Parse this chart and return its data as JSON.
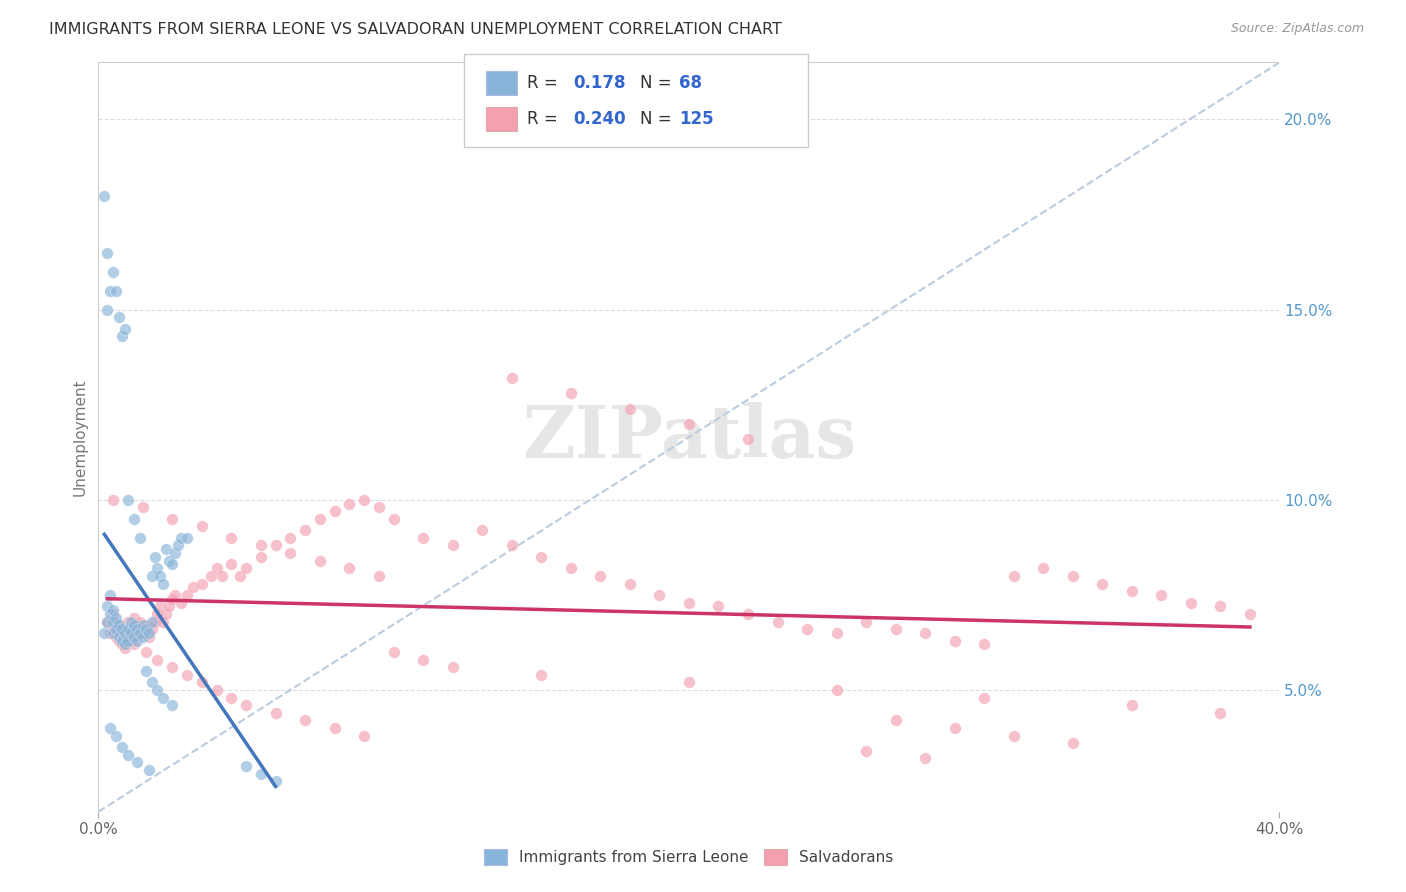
{
  "title": "IMMIGRANTS FROM SIERRA LEONE VS SALVADORAN UNEMPLOYMENT CORRELATION CHART",
  "source": "Source: ZipAtlas.com",
  "ylabel": "Unemployment",
  "ytick_vals": [
    0.05,
    0.1,
    0.15,
    0.2
  ],
  "ytick_labels": [
    "5.0%",
    "10.0%",
    "15.0%",
    "20.0%"
  ],
  "xmin": 0.0,
  "xmax": 0.4,
  "ymin": 0.018,
  "ymax": 0.215,
  "color_blue": "#89B4D9",
  "color_pink": "#F4A0B0",
  "trendline_blue": "#4477BB",
  "trendline_pink": "#CC3366",
  "trendline_dashed": "#BBCCDD",
  "bg_color": "#FFFFFF",
  "scatter_alpha": 0.65,
  "marker_size": 70,
  "blue_x": [
    0.002,
    0.003,
    0.003,
    0.004,
    0.004,
    0.005,
    0.005,
    0.005,
    0.006,
    0.006,
    0.007,
    0.007,
    0.008,
    0.008,
    0.009,
    0.009,
    0.01,
    0.01,
    0.011,
    0.011,
    0.012,
    0.012,
    0.013,
    0.013,
    0.014,
    0.015,
    0.015,
    0.016,
    0.017,
    0.018,
    0.018,
    0.019,
    0.02,
    0.021,
    0.022,
    0.023,
    0.024,
    0.025,
    0.026,
    0.027,
    0.028,
    0.03,
    0.003,
    0.004,
    0.005,
    0.006,
    0.007,
    0.008,
    0.009,
    0.01,
    0.012,
    0.014,
    0.016,
    0.018,
    0.02,
    0.022,
    0.025,
    0.05,
    0.055,
    0.06,
    0.002,
    0.003,
    0.004,
    0.006,
    0.008,
    0.01,
    0.013,
    0.017
  ],
  "blue_y": [
    0.065,
    0.068,
    0.072,
    0.07,
    0.075,
    0.065,
    0.068,
    0.071,
    0.066,
    0.069,
    0.064,
    0.067,
    0.063,
    0.066,
    0.062,
    0.065,
    0.063,
    0.066,
    0.065,
    0.068,
    0.064,
    0.067,
    0.063,
    0.066,
    0.065,
    0.064,
    0.067,
    0.066,
    0.065,
    0.068,
    0.08,
    0.085,
    0.082,
    0.08,
    0.078,
    0.087,
    0.084,
    0.083,
    0.086,
    0.088,
    0.09,
    0.09,
    0.15,
    0.155,
    0.16,
    0.155,
    0.148,
    0.143,
    0.145,
    0.1,
    0.095,
    0.09,
    0.055,
    0.052,
    0.05,
    0.048,
    0.046,
    0.03,
    0.028,
    0.026,
    0.18,
    0.165,
    0.04,
    0.038,
    0.035,
    0.033,
    0.031,
    0.029
  ],
  "pink_x": [
    0.003,
    0.004,
    0.005,
    0.005,
    0.006,
    0.006,
    0.007,
    0.007,
    0.008,
    0.008,
    0.009,
    0.009,
    0.01,
    0.01,
    0.011,
    0.011,
    0.012,
    0.012,
    0.013,
    0.014,
    0.015,
    0.016,
    0.017,
    0.018,
    0.019,
    0.02,
    0.021,
    0.022,
    0.023,
    0.024,
    0.025,
    0.026,
    0.028,
    0.03,
    0.032,
    0.035,
    0.038,
    0.04,
    0.042,
    0.045,
    0.048,
    0.05,
    0.055,
    0.06,
    0.065,
    0.07,
    0.075,
    0.08,
    0.085,
    0.09,
    0.095,
    0.1,
    0.11,
    0.12,
    0.13,
    0.14,
    0.15,
    0.16,
    0.17,
    0.18,
    0.19,
    0.2,
    0.21,
    0.22,
    0.23,
    0.24,
    0.25,
    0.26,
    0.27,
    0.28,
    0.29,
    0.3,
    0.31,
    0.32,
    0.33,
    0.34,
    0.35,
    0.36,
    0.37,
    0.38,
    0.39,
    0.008,
    0.012,
    0.016,
    0.02,
    0.025,
    0.03,
    0.035,
    0.04,
    0.045,
    0.05,
    0.06,
    0.07,
    0.08,
    0.09,
    0.1,
    0.11,
    0.12,
    0.15,
    0.2,
    0.25,
    0.3,
    0.35,
    0.38,
    0.27,
    0.29,
    0.31,
    0.33,
    0.26,
    0.28,
    0.005,
    0.015,
    0.025,
    0.035,
    0.045,
    0.055,
    0.065,
    0.075,
    0.085,
    0.095,
    0.14,
    0.16,
    0.18,
    0.2,
    0.22
  ],
  "pink_y": [
    0.068,
    0.065,
    0.07,
    0.066,
    0.068,
    0.064,
    0.067,
    0.063,
    0.066,
    0.062,
    0.065,
    0.061,
    0.064,
    0.068,
    0.063,
    0.067,
    0.065,
    0.069,
    0.066,
    0.068,
    0.065,
    0.067,
    0.064,
    0.066,
    0.068,
    0.07,
    0.072,
    0.068,
    0.07,
    0.072,
    0.074,
    0.075,
    0.073,
    0.075,
    0.077,
    0.078,
    0.08,
    0.082,
    0.08,
    0.083,
    0.08,
    0.082,
    0.085,
    0.088,
    0.09,
    0.092,
    0.095,
    0.097,
    0.099,
    0.1,
    0.098,
    0.095,
    0.09,
    0.088,
    0.092,
    0.088,
    0.085,
    0.082,
    0.08,
    0.078,
    0.075,
    0.073,
    0.072,
    0.07,
    0.068,
    0.066,
    0.065,
    0.068,
    0.066,
    0.065,
    0.063,
    0.062,
    0.08,
    0.082,
    0.08,
    0.078,
    0.076,
    0.075,
    0.073,
    0.072,
    0.07,
    0.065,
    0.062,
    0.06,
    0.058,
    0.056,
    0.054,
    0.052,
    0.05,
    0.048,
    0.046,
    0.044,
    0.042,
    0.04,
    0.038,
    0.06,
    0.058,
    0.056,
    0.054,
    0.052,
    0.05,
    0.048,
    0.046,
    0.044,
    0.042,
    0.04,
    0.038,
    0.036,
    0.034,
    0.032,
    0.1,
    0.098,
    0.095,
    0.093,
    0.09,
    0.088,
    0.086,
    0.084,
    0.082,
    0.08,
    0.132,
    0.128,
    0.124,
    0.12,
    0.116
  ]
}
